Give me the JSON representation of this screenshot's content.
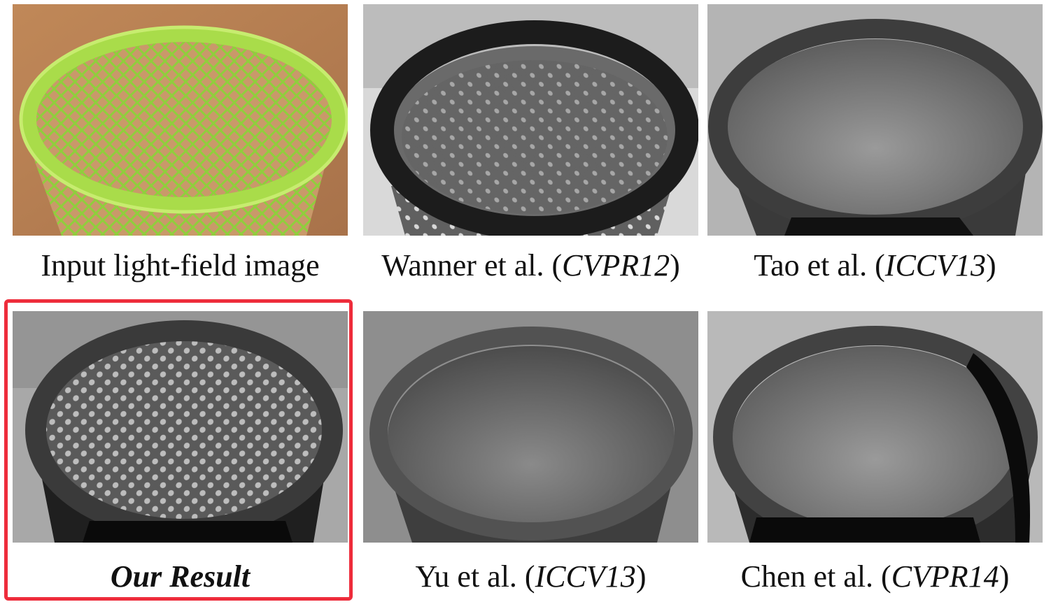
{
  "panels": [
    {
      "caption": "Input light-field image",
      "venue": ""
    },
    {
      "caption": "Wanner et al. (",
      "venue": "CVPR12"
    },
    {
      "caption": "Tao et al. (",
      "venue": "ICCV13"
    },
    {
      "caption": "Our Result",
      "venue": ""
    },
    {
      "caption": "Yu et al. (",
      "venue": "ICCV13"
    },
    {
      "caption": "Chen et al. (",
      "venue": "CVPR14"
    }
  ],
  "closing_paren": ")",
  "colors": {
    "highlight": "#ee2c3b",
    "basket_green": "#a9dc4a",
    "background_tan": "#b07a4c"
  },
  "highlighted_panel": "Our Result"
}
